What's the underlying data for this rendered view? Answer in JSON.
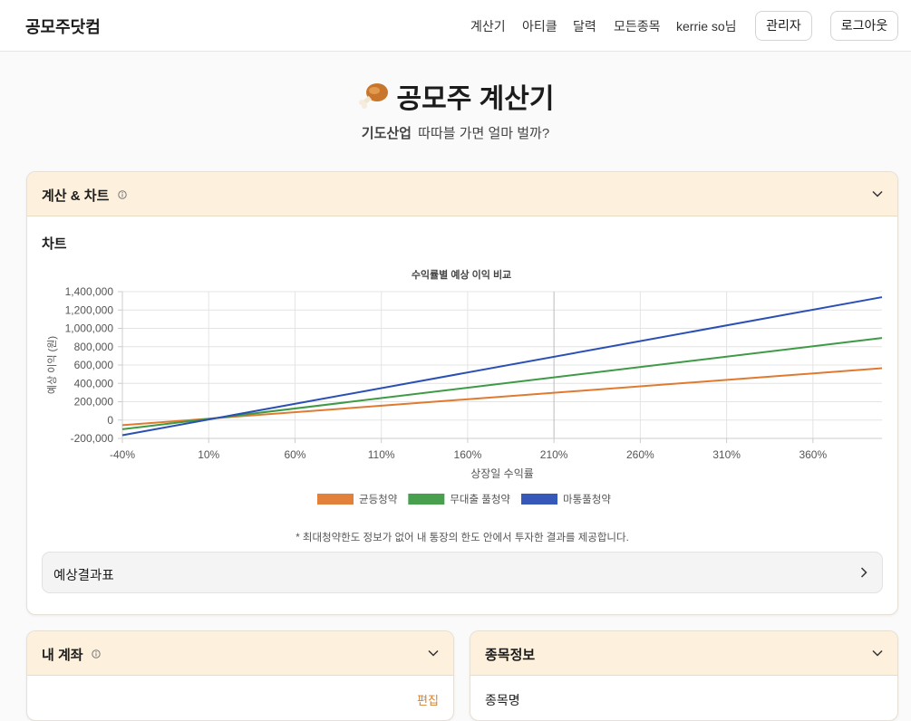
{
  "header": {
    "logo": "공모주닷컴",
    "nav": [
      "계산기",
      "아티클",
      "달력",
      "모든종목"
    ],
    "user": "kerrie so님",
    "buttons": [
      "관리자",
      "로그아웃"
    ]
  },
  "hero": {
    "title": "공모주 계산기",
    "stock": "기도산업",
    "subtitle": "따따블 가면 얼마 벌까?"
  },
  "calc_card": {
    "title": "계산 & 차트",
    "section": "차트",
    "note": "* 최대청약한도 정보가 없어 내 통장의 한도 안에서 투자한 결과를 제공합니다.",
    "result_table": "예상결과표"
  },
  "chart_data": {
    "type": "line",
    "title": "수익률별 예상 이익 비교",
    "x_label": "상장일 수익률",
    "y_label": "예상 이익 (원)",
    "x": [
      -40,
      400
    ],
    "series": [
      {
        "name": "균등청약",
        "color": "#e07a30",
        "values": [
          -55000,
          565000
        ]
      },
      {
        "name": "무대출 풀청약",
        "color": "#3e9a45",
        "values": [
          -100000,
          895000
        ]
      },
      {
        "name": "마통풀청약",
        "color": "#2a4fb5",
        "values": [
          -165000,
          1340000
        ]
      }
    ],
    "xlim": [
      -40,
      400
    ],
    "xticks": [
      {
        "value": -40,
        "label": "-40%"
      },
      {
        "value": 10,
        "label": "10%"
      },
      {
        "value": 60,
        "label": "60%"
      },
      {
        "value": 110,
        "label": "110%"
      },
      {
        "value": 160,
        "label": "160%"
      },
      {
        "value": 210,
        "label": "210%"
      },
      {
        "value": 260,
        "label": "260%"
      },
      {
        "value": 310,
        "label": "310%"
      },
      {
        "value": 360,
        "label": "360%"
      }
    ],
    "ylim": [
      -200000,
      1400000
    ],
    "yticks": [
      {
        "value": -200000,
        "label": "-200,000"
      },
      0,
      {
        "value": 200000,
        "label": "200,000"
      },
      {
        "value": 400000,
        "label": "400,000"
      },
      {
        "value": 600000,
        "label": "600,000"
      },
      {
        "value": 800000,
        "label": "800,000"
      },
      {
        "value": 1000000,
        "label": "1,000,000"
      },
      {
        "value": 1200000,
        "label": "1,200,000"
      },
      {
        "value": 1400000,
        "label": "1,400,000"
      }
    ],
    "marker_x": 210,
    "grid": true,
    "legend": "bottom"
  },
  "account_card": {
    "title": "내 계좌",
    "action": "편집"
  },
  "stock_card": {
    "title": "종목정보",
    "field": "종목명"
  }
}
